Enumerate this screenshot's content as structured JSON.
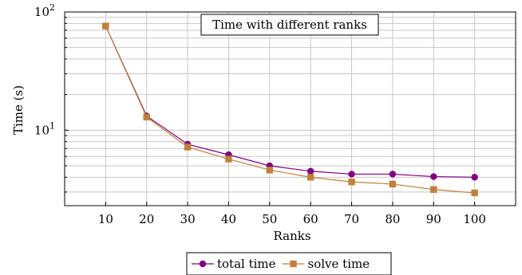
{
  "chart_data": {
    "type": "line",
    "title": "Time with different ranks",
    "xlabel": "Ranks",
    "ylabel": "Time (s)",
    "x": [
      10,
      20,
      30,
      40,
      50,
      60,
      70,
      80,
      90,
      100
    ],
    "xlim": [
      0,
      110
    ],
    "ylim": [
      2.3,
      100
    ],
    "yscale": "log",
    "grid": true,
    "legend_position": "bottom-center",
    "y_ticks": [
      {
        "value": 10,
        "label": "10^1"
      },
      {
        "value": 100,
        "label": "10^2"
      }
    ],
    "series": [
      {
        "name": "total time",
        "color": "#800080",
        "marker": "circle",
        "values": [
          76,
          13.2,
          7.6,
          6.2,
          5.0,
          4.5,
          4.25,
          4.25,
          4.05,
          4.0
        ]
      },
      {
        "name": "solve time",
        "color": "#c0803c",
        "marker": "square",
        "values": [
          76,
          12.9,
          7.2,
          5.7,
          4.6,
          4.0,
          3.65,
          3.5,
          3.15,
          2.95
        ]
      }
    ]
  }
}
